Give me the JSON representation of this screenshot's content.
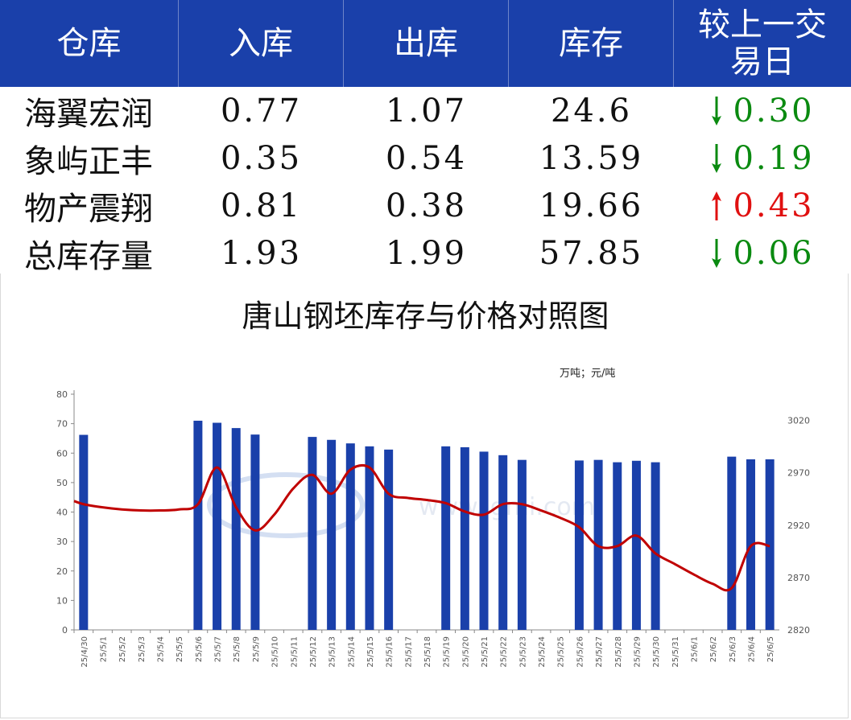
{
  "table": {
    "headers": [
      "仓库",
      "入库",
      "出库",
      "库存",
      "较上一交易日"
    ],
    "rows": [
      {
        "name": "海翼宏润",
        "in": "0.77",
        "out": "1.07",
        "stock": "24.6",
        "direction": "down",
        "change": "0.30"
      },
      {
        "name": "象屿正丰",
        "in": "0.35",
        "out": "0.54",
        "stock": "13.59",
        "direction": "down",
        "change": "0.19"
      },
      {
        "name": "物产震翔",
        "in": "0.81",
        "out": "0.38",
        "stock": "19.66",
        "direction": "up",
        "change": "0.43"
      },
      {
        "name": "总库存量",
        "in": "1.93",
        "out": "1.99",
        "stock": "57.85",
        "direction": "down",
        "change": "0.06"
      }
    ],
    "colors": {
      "header_bg": "#1a40aa",
      "down": "#0a8a10",
      "up": "#e01010"
    }
  },
  "chart_data": {
    "type": "bar+line",
    "title": "唐山钢坯库存与价格对照图",
    "unit_label": "万吨；元/吨",
    "watermark": "www.lgmi.com",
    "categories": [
      "25/4/30",
      "25/5/1",
      "25/5/2",
      "25/5/3",
      "25/5/4",
      "25/5/5",
      "25/5/6",
      "25/5/7",
      "25/5/8",
      "25/5/9",
      "25/5/10",
      "25/5/11",
      "25/5/12",
      "25/5/13",
      "25/5/14",
      "25/5/15",
      "25/5/16",
      "25/5/17",
      "25/5/18",
      "25/5/19",
      "25/5/20",
      "25/5/21",
      "25/5/22",
      "25/5/23",
      "25/5/24",
      "25/5/25",
      "25/5/26",
      "25/5/27",
      "25/5/28",
      "25/5/29",
      "25/5/30",
      "25/5/31",
      "25/6/1",
      "25/6/2",
      "25/6/3",
      "25/6/4",
      "25/6/5"
    ],
    "y_left": {
      "min": 0,
      "max": 80,
      "ticks": [
        0,
        10,
        20,
        30,
        40,
        50,
        60,
        70,
        80
      ]
    },
    "y_right": {
      "min": 2820,
      "max": 3045,
      "ticks": [
        2820,
        2870,
        2920,
        2970,
        3020
      ]
    },
    "series": [
      {
        "type": "bar",
        "axis": "left",
        "color": "#1a40aa",
        "values": [
          66.2,
          null,
          null,
          null,
          null,
          null,
          71.0,
          70.3,
          68.5,
          66.3,
          null,
          null,
          65.5,
          64.5,
          63.3,
          62.3,
          61.2,
          null,
          null,
          62.3,
          62.0,
          60.5,
          59.3,
          57.7,
          null,
          null,
          57.5,
          57.7,
          56.9,
          57.4,
          56.9,
          null,
          null,
          null,
          58.8,
          57.9,
          57.9
        ]
      },
      {
        "type": "line",
        "axis": "right",
        "color": "#c00000",
        "values": [
          2940,
          2937,
          2935,
          2934,
          2934,
          2935,
          2940,
          2975,
          2937,
          2915,
          2930,
          2955,
          2968,
          2950,
          2973,
          2975,
          2950,
          2946,
          2944,
          2941,
          2933,
          2930,
          2940,
          2940,
          2934,
          2927,
          2918,
          2900,
          2900,
          2910,
          2893,
          2883,
          2873,
          2864,
          2860,
          2900,
          2900
        ]
      }
    ]
  }
}
